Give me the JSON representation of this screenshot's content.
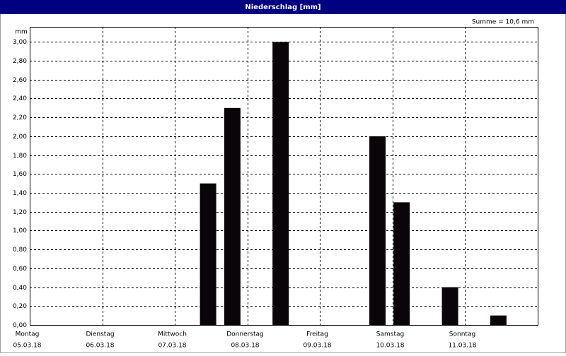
{
  "chart_data": {
    "type": "bar",
    "title": "Niederschlag [mm]",
    "annotation": "Summe = 10,6 mm",
    "y_label": "mm",
    "x": [
      2.458,
      2.792,
      3.458,
      4.792,
      5.125,
      5.792,
      6.458
    ],
    "values": [
      1.5,
      2.3,
      3.0,
      2.0,
      1.3,
      0.4,
      0.1
    ],
    "color": "#0a0508",
    "xlim": [
      0,
      7
    ],
    "xticks": [
      {
        "value": 0,
        "label": "Montag",
        "date": "05.03.18"
      },
      {
        "value": 1,
        "label": "Dienstag",
        "date": "06.03.18"
      },
      {
        "value": 2,
        "label": "Mittwoch",
        "date": "07.03.18"
      },
      {
        "value": 3,
        "label": "Donnerstag",
        "date": "08.03.18"
      },
      {
        "value": 4,
        "label": "Freitag",
        "date": "09.03.18"
      },
      {
        "value": 5,
        "label": "Samstag",
        "date": "10.03.18"
      },
      {
        "value": 6,
        "label": "Sonntag",
        "date": "11.03.18"
      }
    ],
    "ylim": [
      0,
      3.16
    ],
    "yticks": [
      {
        "value": 0,
        "label": "0,00"
      },
      {
        "value": 0.2,
        "label": "0,20"
      },
      {
        "value": 0.4,
        "label": "0,40"
      },
      {
        "value": 0.6,
        "label": "0,60"
      },
      {
        "value": 0.8,
        "label": "0,80"
      },
      {
        "value": 1.0,
        "label": "1,00"
      },
      {
        "value": 1.2,
        "label": "1,20"
      },
      {
        "value": 1.4,
        "label": "1,40"
      },
      {
        "value": 1.6,
        "label": "1,60"
      },
      {
        "value": 1.8,
        "label": "1,80"
      },
      {
        "value": 2.0,
        "label": "2,00"
      },
      {
        "value": 2.2,
        "label": "2,20"
      },
      {
        "value": 2.4,
        "label": "2,40"
      },
      {
        "value": 2.6,
        "label": "2,60"
      },
      {
        "value": 2.8,
        "label": "2,80"
      },
      {
        "value": 3.0,
        "label": "3,00"
      }
    ],
    "grid": true
  }
}
